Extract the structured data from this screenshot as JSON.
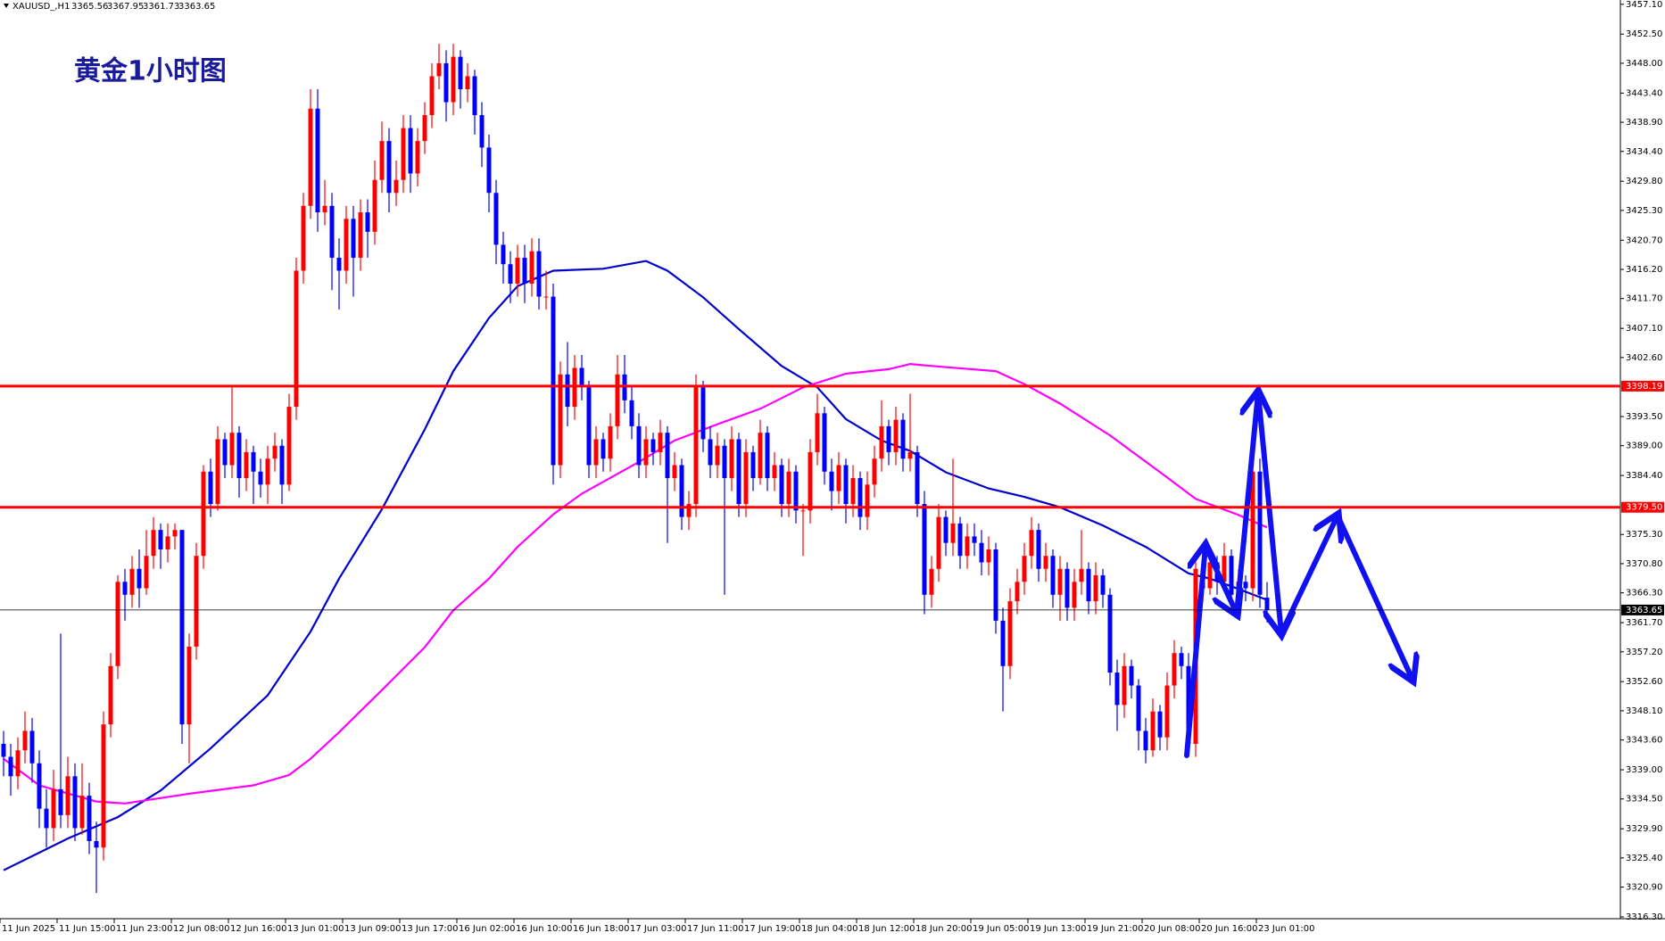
{
  "chart_data": {
    "type": "candlestick",
    "header": {
      "symbol": "XAUUSD_,H1"
    },
    "title": "黄金1小时图",
    "up_color": "#ff0000",
    "down_color": "#0000ff",
    "ylim": [
      3316.3,
      3457.1
    ],
    "yticks": [
      {
        "value": 3457.1,
        "label": "3457.10"
      },
      {
        "value": 3452.5,
        "label": "3452.50"
      },
      {
        "value": 3448.0,
        "label": "3448.00"
      },
      {
        "value": 3443.4,
        "label": "3443.40"
      },
      {
        "value": 3438.9,
        "label": "3438.90"
      },
      {
        "value": 3434.4,
        "label": "3434.40"
      },
      {
        "value": 3429.8,
        "label": "3429.80"
      },
      {
        "value": 3425.3,
        "label": "3425.30"
      },
      {
        "value": 3420.7,
        "label": "3420.70"
      },
      {
        "value": 3416.2,
        "label": "3416.20"
      },
      {
        "value": 3411.7,
        "label": "3411.70"
      },
      {
        "value": 3407.1,
        "label": "3407.10"
      },
      {
        "value": 3402.6,
        "label": "3402.60"
      },
      {
        "value": 3393.5,
        "label": "3393.50"
      },
      {
        "value": 3389.0,
        "label": "3389.00"
      },
      {
        "value": 3384.4,
        "label": "3384.40"
      },
      {
        "value": 3375.3,
        "label": "3375.30"
      },
      {
        "value": 3370.8,
        "label": "3370.80"
      },
      {
        "value": 3366.3,
        "label": "3366.30"
      },
      {
        "value": 3361.7,
        "label": "3361.70"
      },
      {
        "value": 3357.2,
        "label": "3357.20"
      },
      {
        "value": 3352.6,
        "label": "3352.60"
      },
      {
        "value": 3348.1,
        "label": "3348.10"
      },
      {
        "value": 3343.6,
        "label": "3343.60"
      },
      {
        "value": 3339.0,
        "label": "3339.00"
      },
      {
        "value": 3334.5,
        "label": "3334.50"
      },
      {
        "value": 3329.9,
        "label": "3329.90"
      },
      {
        "value": 3325.4,
        "label": "3325.40"
      },
      {
        "value": 3320.9,
        "label": "3320.90"
      },
      {
        "value": 3316.3,
        "label": "3316.30"
      }
    ],
    "xticks": [
      {
        "value": 0,
        "label": "11 Jun 2025"
      },
      {
        "value": 8,
        "label": "11 Jun 15:00"
      },
      {
        "value": 16,
        "label": "11 Jun 23:00"
      },
      {
        "value": 24,
        "label": "12 Jun 08:00"
      },
      {
        "value": 32,
        "label": "12 Jun 16:00"
      },
      {
        "value": 40,
        "label": "13 Jun 01:00"
      },
      {
        "value": 48,
        "label": "13 Jun 09:00"
      },
      {
        "value": 56,
        "label": "13 Jun 17:00"
      },
      {
        "value": 64,
        "label": "16 Jun 02:00"
      },
      {
        "value": 72,
        "label": "16 Jun 10:00"
      },
      {
        "value": 80,
        "label": "16 Jun 18:00"
      },
      {
        "value": 88,
        "label": "17 Jun 03:00"
      },
      {
        "value": 96,
        "label": "17 Jun 11:00"
      },
      {
        "value": 104,
        "label": "17 Jun 19:00"
      },
      {
        "value": 112,
        "label": "18 Jun 04:00"
      },
      {
        "value": 120,
        "label": "18 Jun 12:00"
      },
      {
        "value": 128,
        "label": "18 Jun 20:00"
      },
      {
        "value": 136,
        "label": "19 Jun 05:00"
      },
      {
        "value": 144,
        "label": "19 Jun 13:00"
      },
      {
        "value": 152,
        "label": "19 Jun 21:00"
      },
      {
        "value": 160,
        "label": "20 Jun 08:00"
      },
      {
        "value": 168,
        "label": "20 Jun 16:00"
      },
      {
        "value": 176,
        "label": "23 Jun 01:00"
      }
    ],
    "levels": [
      3398.19,
      {
        "value": 3379.5,
        "label": "3379.50"
      }
    ],
    "level_color": "#ff0000",
    "last_price_line": true,
    "candles": [
      [
        3343,
        3345,
        3338,
        3341
      ],
      [
        3341,
        3343,
        3335,
        3338
      ],
      [
        3338,
        3344,
        3336,
        3342
      ],
      [
        3342,
        3348,
        3340,
        3345
      ],
      [
        3345,
        3347,
        3337,
        3340
      ],
      [
        3340,
        3342,
        3330,
        3333
      ],
      [
        3333,
        3336,
        3327,
        3330
      ],
      [
        3330,
        3339,
        3328,
        3336
      ],
      [
        3336,
        3360,
        3330,
        3332
      ],
      [
        3332,
        3341,
        3330,
        3338
      ],
      [
        3338,
        3340,
        3328,
        3330
      ],
      [
        3330,
        3340,
        3329,
        3335
      ],
      [
        3335,
        3337,
        3326,
        3328
      ],
      [
        3328,
        3331,
        3320,
        3327
      ],
      [
        3327,
        3348,
        3325,
        3346
      ],
      [
        3346,
        3357,
        3344,
        3355
      ],
      [
        3355,
        3369,
        3353,
        3368
      ],
      [
        3368,
        3370,
        3362,
        3366
      ],
      [
        3366,
        3372,
        3364,
        3370
      ],
      [
        3370,
        3373,
        3364,
        3367
      ],
      [
        3367,
        3376,
        3366,
        3372
      ],
      [
        3372,
        3378,
        3370,
        3376
      ],
      [
        3376,
        3377,
        3370,
        3373
      ],
      [
        3373,
        3377,
        3371,
        3375
      ],
      [
        3375,
        3377,
        3373,
        3376
      ],
      [
        3376,
        3376,
        3343,
        3346
      ],
      [
        3346,
        3360,
        3340,
        3358
      ],
      [
        3358,
        3374,
        3356,
        3372
      ],
      [
        3372,
        3386,
        3370,
        3385
      ],
      [
        3385,
        3387,
        3378,
        3380
      ],
      [
        3380,
        3392,
        3379,
        3390
      ],
      [
        3390,
        3391,
        3384,
        3386
      ],
      [
        3386,
        3398,
        3384,
        3391
      ],
      [
        3391,
        3392,
        3381,
        3384
      ],
      [
        3384,
        3390,
        3382,
        3388
      ],
      [
        3388,
        3389,
        3380,
        3385
      ],
      [
        3385,
        3387,
        3381,
        3383
      ],
      [
        3383,
        3389,
        3380,
        3387
      ],
      [
        3387,
        3391,
        3385,
        3389
      ],
      [
        3389,
        3390,
        3380,
        3383
      ],
      [
        3383,
        3397,
        3382,
        3395
      ],
      [
        3395,
        3418,
        3393,
        3416
      ],
      [
        3416,
        3428,
        3414,
        3426
      ],
      [
        3426,
        3444,
        3424,
        3441
      ],
      [
        3441,
        3444,
        3422,
        3425
      ],
      [
        3425,
        3430,
        3423,
        3426
      ],
      [
        3426,
        3428,
        3413,
        3418
      ],
      [
        3418,
        3421,
        3410,
        3416
      ],
      [
        3416,
        3426,
        3414,
        3424
      ],
      [
        3424,
        3426,
        3412,
        3418
      ],
      [
        3418,
        3427,
        3416,
        3425
      ],
      [
        3425,
        3427,
        3418,
        3422
      ],
      [
        3422,
        3433,
        3420,
        3430
      ],
      [
        3430,
        3439,
        3428,
        3436
      ],
      [
        3436,
        3438,
        3425,
        3428
      ],
      [
        3428,
        3433,
        3426,
        3430
      ],
      [
        3430,
        3440,
        3428,
        3438
      ],
      [
        3438,
        3440,
        3428,
        3431
      ],
      [
        3431,
        3438,
        3429,
        3436
      ],
      [
        3436,
        3442,
        3434,
        3440
      ],
      [
        3440,
        3448,
        3438,
        3446
      ],
      [
        3446,
        3451,
        3444,
        3448
      ],
      [
        3448,
        3450,
        3439,
        3442
      ],
      [
        3442,
        3451,
        3440,
        3449
      ],
      [
        3449,
        3450,
        3441,
        3444
      ],
      [
        3444,
        3448,
        3442,
        3446
      ],
      [
        3446,
        3447,
        3437,
        3440
      ],
      [
        3440,
        3442,
        3432,
        3435
      ],
      [
        3435,
        3437,
        3425,
        3428
      ],
      [
        3428,
        3430,
        3417,
        3420
      ],
      [
        3420,
        3422,
        3414,
        3417
      ],
      [
        3417,
        3419,
        3411,
        3414
      ],
      [
        3414,
        3420,
        3412,
        3418
      ],
      [
        3418,
        3420,
        3411,
        3414
      ],
      [
        3414,
        3421,
        3412,
        3419
      ],
      [
        3419,
        3421,
        3410,
        3412
      ],
      [
        3412,
        3416,
        3410,
        3412
      ],
      [
        3412,
        3414,
        3383,
        3386
      ],
      [
        3386,
        3402,
        3384,
        3400
      ],
      [
        3400,
        3405,
        3392,
        3395
      ],
      [
        3395,
        3403,
        3393,
        3401
      ],
      [
        3401,
        3403,
        3396,
        3398
      ],
      [
        3398,
        3399,
        3384,
        3386
      ],
      [
        3386,
        3392,
        3384,
        3390
      ],
      [
        3390,
        3391,
        3385,
        3387
      ],
      [
        3387,
        3394,
        3385,
        3392
      ],
      [
        3392,
        3403,
        3390,
        3400
      ],
      [
        3400,
        3403,
        3394,
        3396
      ],
      [
        3396,
        3398,
        3390,
        3392
      ],
      [
        3392,
        3394,
        3384,
        3386
      ],
      [
        3386,
        3392,
        3384,
        3390
      ],
      [
        3390,
        3391,
        3386,
        3388
      ],
      [
        3388,
        3393,
        3386,
        3391
      ],
      [
        3391,
        3392,
        3374,
        3384
      ],
      [
        3384,
        3388,
        3382,
        3386
      ],
      [
        3386,
        3387,
        3376,
        3378
      ],
      [
        3378,
        3382,
        3376,
        3380
      ],
      [
        3380,
        3400,
        3378,
        3398
      ],
      [
        3398,
        3399,
        3388,
        3390
      ],
      [
        3390,
        3392,
        3384,
        3386
      ],
      [
        3386,
        3391,
        3384,
        3389
      ],
      [
        3389,
        3390,
        3366,
        3384
      ],
      [
        3384,
        3392,
        3382,
        3390
      ],
      [
        3390,
        3391,
        3378,
        3380
      ],
      [
        3380,
        3390,
        3378,
        3388
      ],
      [
        3388,
        3389,
        3382,
        3384
      ],
      [
        3384,
        3393,
        3383,
        3391
      ],
      [
        3391,
        3392,
        3382,
        3384
      ],
      [
        3384,
        3388,
        3382,
        3386
      ],
      [
        3386,
        3387,
        3378,
        3380
      ],
      [
        3380,
        3387,
        3378,
        3385
      ],
      [
        3385,
        3386,
        3377,
        3379
      ],
      [
        3379,
        3380,
        3372,
        3379
      ],
      [
        3379,
        3390,
        3377,
        3388
      ],
      [
        3388,
        3397,
        3386,
        3394
      ],
      [
        3394,
        3395,
        3383,
        3385
      ],
      [
        3385,
        3387,
        3379,
        3382
      ],
      [
        3382,
        3388,
        3380,
        3386
      ],
      [
        3386,
        3387,
        3377,
        3380
      ],
      [
        3380,
        3386,
        3378,
        3384
      ],
      [
        3384,
        3385,
        3376,
        3378
      ],
      [
        3378,
        3385,
        3376,
        3383
      ],
      [
        3383,
        3389,
        3381,
        3387
      ],
      [
        3387,
        3396,
        3385,
        3392
      ],
      [
        3392,
        3393,
        3386,
        3388
      ],
      [
        3388,
        3395,
        3386,
        3393
      ],
      [
        3393,
        3394,
        3385,
        3387
      ],
      [
        3387,
        3397,
        3385,
        3388
      ],
      [
        3388,
        3389,
        3378,
        3380
      ],
      [
        3380,
        3382,
        3363,
        3366
      ],
      [
        3366,
        3372,
        3364,
        3370
      ],
      [
        3370,
        3380,
        3368,
        3378
      ],
      [
        3378,
        3379,
        3372,
        3374
      ],
      [
        3374,
        3387,
        3372,
        3377
      ],
      [
        3377,
        3378,
        3370,
        3372
      ],
      [
        3372,
        3377,
        3370,
        3375
      ],
      [
        3375,
        3377,
        3372,
        3374
      ],
      [
        3374,
        3376,
        3369,
        3371
      ],
      [
        3371,
        3375,
        3369,
        3373
      ],
      [
        3373,
        3374,
        3360,
        3362
      ],
      [
        3362,
        3364,
        3348,
        3355
      ],
      [
        3355,
        3367,
        3353,
        3365
      ],
      [
        3365,
        3370,
        3363,
        3368
      ],
      [
        3368,
        3374,
        3366,
        3372
      ],
      [
        3372,
        3378,
        3370,
        3376
      ],
      [
        3376,
        3377,
        3368,
        3370
      ],
      [
        3370,
        3374,
        3368,
        3372
      ],
      [
        3372,
        3373,
        3364,
        3366
      ],
      [
        3366,
        3372,
        3362,
        3370
      ],
      [
        3370,
        3371,
        3362,
        3364
      ],
      [
        3364,
        3370,
        3362,
        3368
      ],
      [
        3368,
        3376,
        3366,
        3370
      ],
      [
        3370,
        3371,
        3363,
        3365
      ],
      [
        3365,
        3371,
        3363,
        3369
      ],
      [
        3369,
        3370,
        3364,
        3366
      ],
      [
        3366,
        3367,
        3352,
        3354
      ],
      [
        3354,
        3356,
        3345,
        3349
      ],
      [
        3349,
        3357,
        3347,
        3355
      ],
      [
        3355,
        3356,
        3350,
        3352
      ],
      [
        3352,
        3353,
        3342,
        3345
      ],
      [
        3345,
        3347,
        3340,
        3342
      ],
      [
        3342,
        3350,
        3341,
        3348
      ],
      [
        3348,
        3349,
        3342,
        3344
      ],
      [
        3344,
        3354,
        3342,
        3352
      ],
      [
        3352,
        3359,
        3350,
        3357
      ],
      [
        3357,
        3358,
        3353,
        3355
      ],
      [
        3355,
        3357,
        3341,
        3343
      ],
      [
        3343,
        3372,
        3341,
        3370
      ],
      [
        3370,
        3371,
        3365,
        3367
      ],
      [
        3367,
        3373,
        3366,
        3371
      ],
      [
        3371,
        3372,
        3366,
        3368
      ],
      [
        3368,
        3374,
        3367,
        3372
      ],
      [
        3372,
        3373,
        3364,
        3366
      ],
      [
        3366,
        3370,
        3364,
        3368
      ],
      [
        3368,
        3369,
        3365,
        3367
      ],
      [
        3367,
        3389,
        3365,
        3385
      ],
      [
        3385,
        3387,
        3364,
        3366
      ],
      [
        3365.56,
        3367.95,
        3361.73,
        3363.65
      ]
    ],
    "series": [
      {
        "color": "#0000cc",
        "x": [
          0,
          9,
          16,
          22,
          29,
          37,
          43,
          47,
          53,
          59,
          63,
          68,
          72,
          77,
          84,
          90,
          93,
          98,
          103,
          109,
          114,
          118,
          123,
          127,
          132,
          138,
          143,
          148,
          154,
          160,
          166,
          169,
          173,
          177
        ],
        "values": [
          3323.5,
          3328.4,
          3331.7,
          3335.8,
          3342.3,
          3350.5,
          3360.3,
          3368.5,
          3379.2,
          3391.5,
          3400.5,
          3408.7,
          3413.6,
          3416.0,
          3416.3,
          3417.5,
          3416.0,
          3411.9,
          3407.0,
          3401.3,
          3398.0,
          3393.1,
          3389.8,
          3388.2,
          3384.9,
          3382.4,
          3381.1,
          3379.5,
          3376.7,
          3373.4,
          3369.3,
          3368.5,
          3366.9,
          3365.2
        ]
      },
      {
        "color": "#ff00ff",
        "x": [
          0,
          5,
          13,
          17,
          26,
          35,
          40,
          43,
          47,
          53,
          59,
          63,
          68,
          72,
          77,
          81,
          89,
          94,
          100,
          106,
          112,
          118,
          124,
          127,
          130,
          139,
          143,
          148,
          155,
          163,
          167,
          173,
          177
        ],
        "values": [
          3340.7,
          3336.6,
          3334.1,
          3333.8,
          3335.3,
          3336.6,
          3338.2,
          3340.7,
          3344.8,
          3351.3,
          3357.9,
          3363.6,
          3368.5,
          3373.4,
          3378.4,
          3381.6,
          3386.5,
          3389.8,
          3392.3,
          3394.7,
          3398.0,
          3400.1,
          3400.8,
          3401.6,
          3401.3,
          3400.5,
          3398.5,
          3395.5,
          3390.6,
          3384.1,
          3380.8,
          3378.3,
          3376.4
        ]
      }
    ]
  }
}
